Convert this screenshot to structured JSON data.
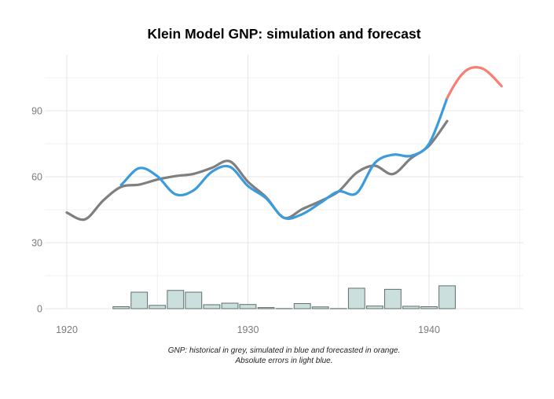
{
  "title": "Klein Model GNP: simulation and forecast",
  "caption": {
    "line1": "GNP: historical in grey, simulated in blue and forecasted in orange.",
    "line2": "Absolute errors in light blue."
  },
  "colors": {
    "background": "#ffffff",
    "title": "#000000",
    "caption": "#1f1f1f",
    "tick_labels": "#7b7b7b",
    "grid_major": "#e4e4e4",
    "grid_minor": "#f0f0f0",
    "historical": "#7f7f7f",
    "simulated": "#3b9bdd",
    "forecast": "#f87e72",
    "error_fill": "#cbe0dc",
    "error_stroke": "#5d6e6c"
  },
  "chart_data": {
    "type": "line",
    "title": "Klein Model GNP: simulation and forecast",
    "xlabel": "",
    "ylabel": "",
    "x_ticks": [
      1920,
      1930,
      1940
    ],
    "y_ticks": [
      0,
      30,
      60,
      90
    ],
    "x_minor": [
      1925,
      1935,
      1945
    ],
    "y_minor": [
      15,
      45,
      75,
      105
    ],
    "xlim": [
      1918.8,
      1945.2
    ],
    "ylim": [
      0,
      116
    ],
    "grid": "on",
    "legend": "none (explained in caption)",
    "series": [
      {
        "name": "historical GNP (grey)",
        "color": "#7f7f7f",
        "years": [
          1920,
          1921,
          1922,
          1923,
          1924,
          1925,
          1926,
          1927,
          1928,
          1929,
          1930,
          1931,
          1932,
          1933,
          1934,
          1935,
          1936,
          1937,
          1938,
          1939,
          1940,
          1941
        ],
        "values": [
          43.7,
          40.6,
          49.1,
          55.4,
          56.4,
          58.7,
          60.3,
          61.3,
          64.0,
          67.0,
          57.7,
          50.7,
          41.3,
          45.3,
          48.9,
          53.3,
          61.8,
          65.0,
          61.2,
          68.4,
          74.1,
          85.3
        ]
      },
      {
        "name": "simulated GNP (blue)",
        "color": "#3b9bdd",
        "lead_from": "historical GNP (grey)",
        "years": [
          1923,
          1924,
          1925,
          1926,
          1927,
          1928,
          1929,
          1930,
          1931,
          1932,
          1933,
          1934,
          1935,
          1936,
          1937,
          1938,
          1939,
          1940,
          1941
        ],
        "values": [
          56.3,
          63.9,
          60.2,
          52.0,
          53.8,
          62.2,
          64.5,
          55.8,
          50.2,
          41.3,
          43.0,
          48.1,
          53.3,
          52.5,
          66.2,
          70.0,
          69.5,
          75.0,
          95.7
        ]
      },
      {
        "name": "forecasted GNP (orange)",
        "color": "#f87e72",
        "lead_from": "simulated GNP (blue)",
        "years": [
          1941,
          1942,
          1943,
          1944
        ],
        "values": [
          95.7,
          108.0,
          109.0,
          101.2
        ]
      }
    ],
    "bars": {
      "name": "absolute errors (light blue)",
      "fill": "#cbe0dc",
      "stroke": "#5d6e6c",
      "years": [
        1923,
        1924,
        1925,
        1926,
        1927,
        1928,
        1929,
        1930,
        1931,
        1932,
        1933,
        1934,
        1935,
        1936,
        1937,
        1938,
        1939,
        1940,
        1941
      ],
      "values": [
        0.9,
        7.5,
        1.5,
        8.3,
        7.5,
        1.8,
        2.5,
        1.9,
        0.5,
        0.05,
        2.3,
        0.8,
        0.05,
        9.3,
        1.2,
        8.8,
        1.1,
        0.9,
        10.4
      ]
    }
  }
}
